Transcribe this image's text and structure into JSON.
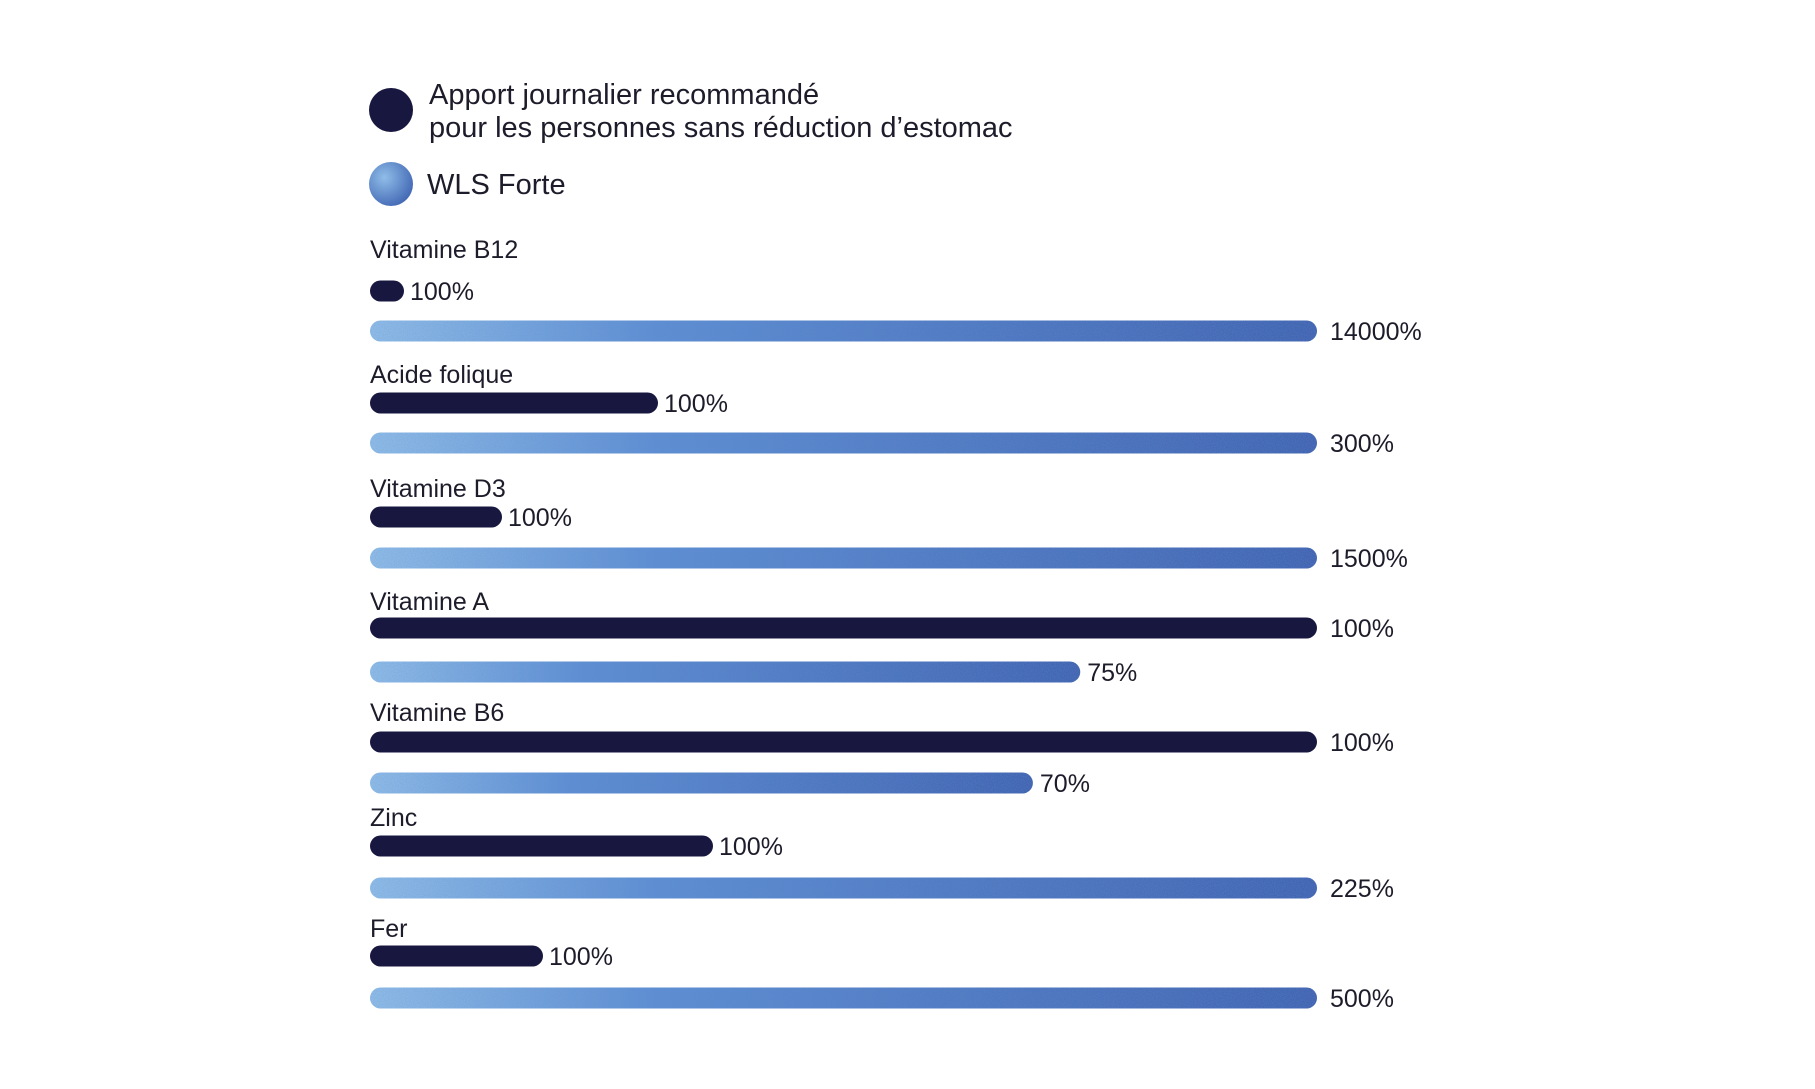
{
  "colors": {
    "dark_bar": "#17173f",
    "light_bar_start": "#8fbde8",
    "light_bar_end": "#3f64b2",
    "text": "#1c1c2a"
  },
  "legend": [
    {
      "lines": [
        "Apport journalier recommandé",
        "pour les personnes sans réduction d’estomac"
      ],
      "series": "reference"
    },
    {
      "lines": [
        "WLS Forte"
      ],
      "series": "product"
    }
  ],
  "chart_data": {
    "type": "bar",
    "orientation": "horizontal",
    "categories": [
      "Vitamine B12",
      "Acide folique",
      "Vitamine D3",
      "Vitamine A",
      "Vitamine B6",
      "Zinc",
      "Fer"
    ],
    "series": [
      {
        "name": "Apport journalier recommandé pour les personnes sans réduction d’estomac",
        "values": [
          100,
          100,
          100,
          100,
          100,
          100,
          100
        ],
        "labels": [
          "100%",
          "100%",
          "100%",
          "100%",
          "100%",
          "100%",
          "100%"
        ]
      },
      {
        "name": "WLS Forte",
        "values": [
          14000,
          300,
          1500,
          75,
          70,
          225,
          500
        ],
        "labels": [
          "14000%",
          "300%",
          "1500%",
          "75%",
          "70%",
          "225%",
          "500%"
        ]
      }
    ],
    "scale": "per-category, larger value spans full width",
    "grid": false,
    "legend_position": "top-left",
    "title": "",
    "xlabel": "",
    "ylabel": ""
  }
}
